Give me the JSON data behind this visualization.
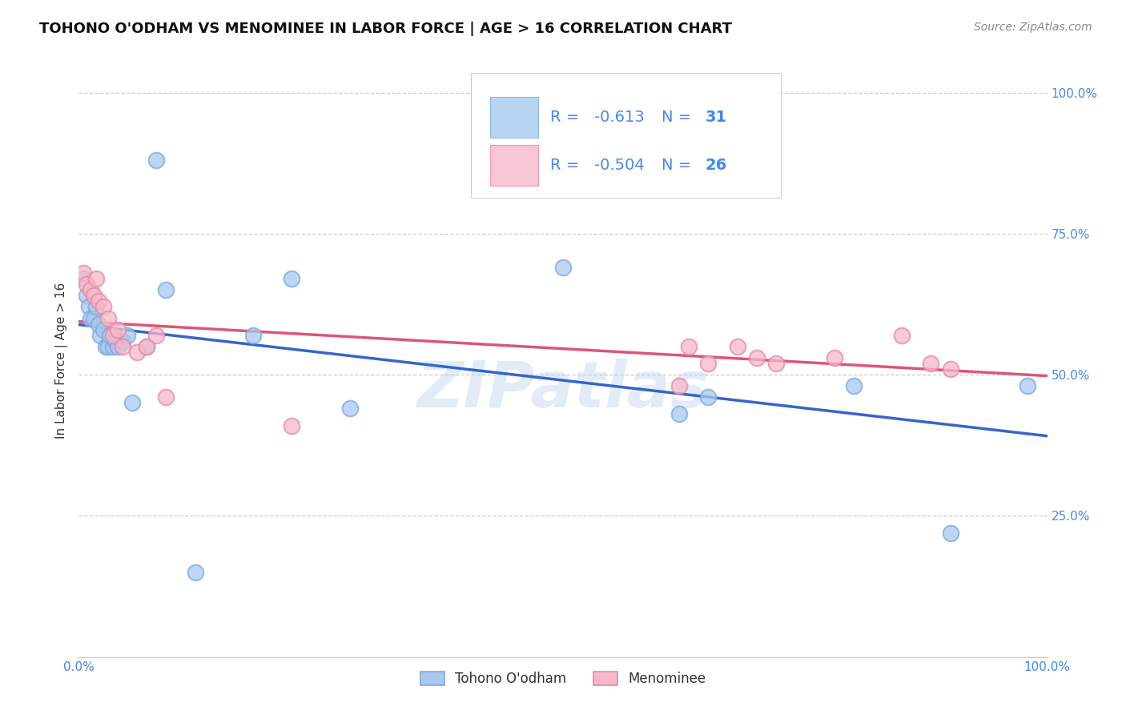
{
  "title": "TOHONO O'ODHAM VS MENOMINEE IN LABOR FORCE | AGE > 16 CORRELATION CHART",
  "source": "Source: ZipAtlas.com",
  "ylabel": "In Labor Force | Age > 16",
  "watermark": "ZIPatlas",
  "tohono_R": -0.613,
  "tohono_N": 31,
  "menominee_R": -0.504,
  "menominee_N": 26,
  "tohono_color": "#a8c8f0",
  "tohono_edge_color": "#7aabde",
  "tohono_line_color": "#3366cc",
  "menominee_color": "#f8b8c8",
  "menominee_edge_color": "#e888a8",
  "menominee_line_color": "#dd5577",
  "background_color": "#ffffff",
  "grid_color": "#cccccc",
  "axis_color": "#4488ee",
  "text_color": "#333333",
  "xlim": [
    0.0,
    1.0
  ],
  "ylim": [
    0.0,
    1.05
  ],
  "tohono_x": [
    0.005,
    0.008,
    0.01,
    0.012,
    0.015,
    0.018,
    0.02,
    0.022,
    0.025,
    0.028,
    0.03,
    0.032,
    0.035,
    0.038,
    0.04,
    0.045,
    0.05,
    0.055,
    0.07,
    0.08,
    0.09,
    0.12,
    0.18,
    0.22,
    0.28,
    0.5,
    0.62,
    0.65,
    0.8,
    0.9,
    0.98
  ],
  "tohono_y": [
    0.67,
    0.64,
    0.62,
    0.6,
    0.6,
    0.62,
    0.59,
    0.57,
    0.58,
    0.55,
    0.55,
    0.57,
    0.55,
    0.56,
    0.55,
    0.56,
    0.57,
    0.45,
    0.55,
    0.88,
    0.65,
    0.15,
    0.57,
    0.67,
    0.44,
    0.69,
    0.43,
    0.46,
    0.48,
    0.22,
    0.48
  ],
  "menominee_x": [
    0.005,
    0.008,
    0.012,
    0.015,
    0.018,
    0.02,
    0.025,
    0.03,
    0.035,
    0.04,
    0.045,
    0.06,
    0.07,
    0.08,
    0.09,
    0.22,
    0.62,
    0.63,
    0.65,
    0.68,
    0.7,
    0.72,
    0.78,
    0.85,
    0.88,
    0.9
  ],
  "menominee_y": [
    0.68,
    0.66,
    0.65,
    0.64,
    0.67,
    0.63,
    0.62,
    0.6,
    0.57,
    0.58,
    0.55,
    0.54,
    0.55,
    0.57,
    0.46,
    0.41,
    0.48,
    0.55,
    0.52,
    0.55,
    0.53,
    0.52,
    0.53,
    0.57,
    0.52,
    0.51
  ],
  "legend_tohono_label": "Tohono O'odham",
  "legend_menominee_label": "Menominee",
  "title_fontsize": 13,
  "label_fontsize": 11,
  "tick_fontsize": 11,
  "legend_fontsize": 14,
  "source_fontsize": 10
}
